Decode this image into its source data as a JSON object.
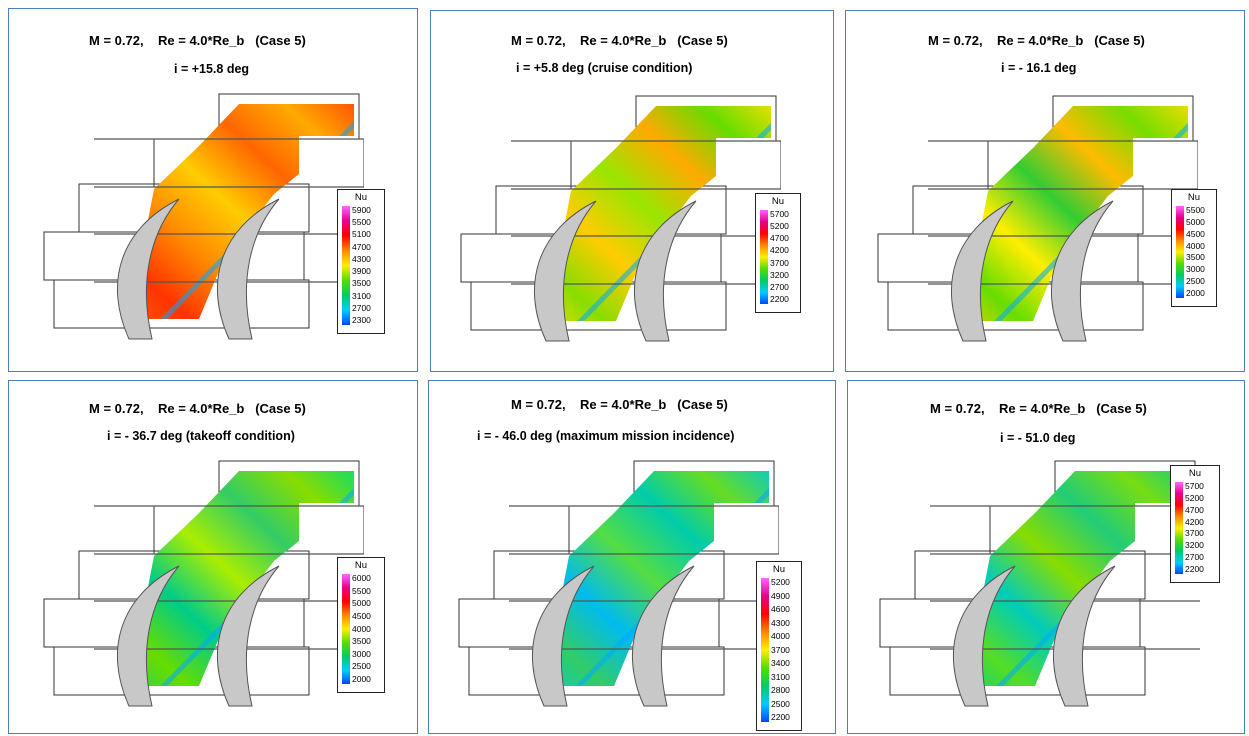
{
  "panels": [
    {
      "line1": "M = 0.72,    Re = 4.0*Re_b   (Case 5)",
      "line2": "i = +15.8 deg",
      "legend": {
        "label": "Nu",
        "ticks": [
          "5900",
          "5500",
          "5100",
          "4700",
          "4300",
          "3900",
          "3500",
          "3100",
          "2700",
          "2300"
        ]
      }
    },
    {
      "line1": "M = 0.72,    Re = 4.0*Re_b   (Case 5)",
      "line2": "i = +5.8 deg (cruise condition)",
      "legend": {
        "label": "Nu",
        "ticks": [
          "5700",
          "5200",
          "4700",
          "4200",
          "3700",
          "3200",
          "2700",
          "2200"
        ]
      }
    },
    {
      "line1": "M = 0.72,    Re = 4.0*Re_b   (Case 5)",
      "line2": "i = - 16.1 deg",
      "legend": {
        "label": "Nu",
        "ticks": [
          "5500",
          "5000",
          "4500",
          "4000",
          "3500",
          "3000",
          "2500",
          "2000"
        ]
      }
    },
    {
      "line1": "M = 0.72,    Re = 4.0*Re_b   (Case 5)",
      "line2": "i = - 36.7 deg (takeoff condition)",
      "legend": {
        "label": "Nu",
        "ticks": [
          "6000",
          "5500",
          "5000",
          "4500",
          "4000",
          "3500",
          "3000",
          "2500",
          "2000"
        ]
      }
    },
    {
      "line1": "M = 0.72,    Re = 4.0*Re_b   (Case 5)",
      "line2": "i = - 46.0 deg (maximum mission incidence)",
      "legend": {
        "label": "Nu",
        "ticks": [
          "5200",
          "4900",
          "4600",
          "4300",
          "4000",
          "3700",
          "3400",
          "3100",
          "2800",
          "2500",
          "2200"
        ]
      }
    },
    {
      "line1": "M = 0.72,    Re = 4.0*Re_b   (Case 5)",
      "line2": "i = - 51.0 deg",
      "legend": {
        "label": "Nu",
        "ticks": [
          "5700",
          "5200",
          "4700",
          "4200",
          "3700",
          "3200",
          "2700",
          "2200"
        ]
      }
    }
  ],
  "colormap": [
    "#ff66ff",
    "#e8008a",
    "#ff0000",
    "#ff8800",
    "#ffee00",
    "#55dd00",
    "#00cc66",
    "#00ccff",
    "#0044ff"
  ]
}
